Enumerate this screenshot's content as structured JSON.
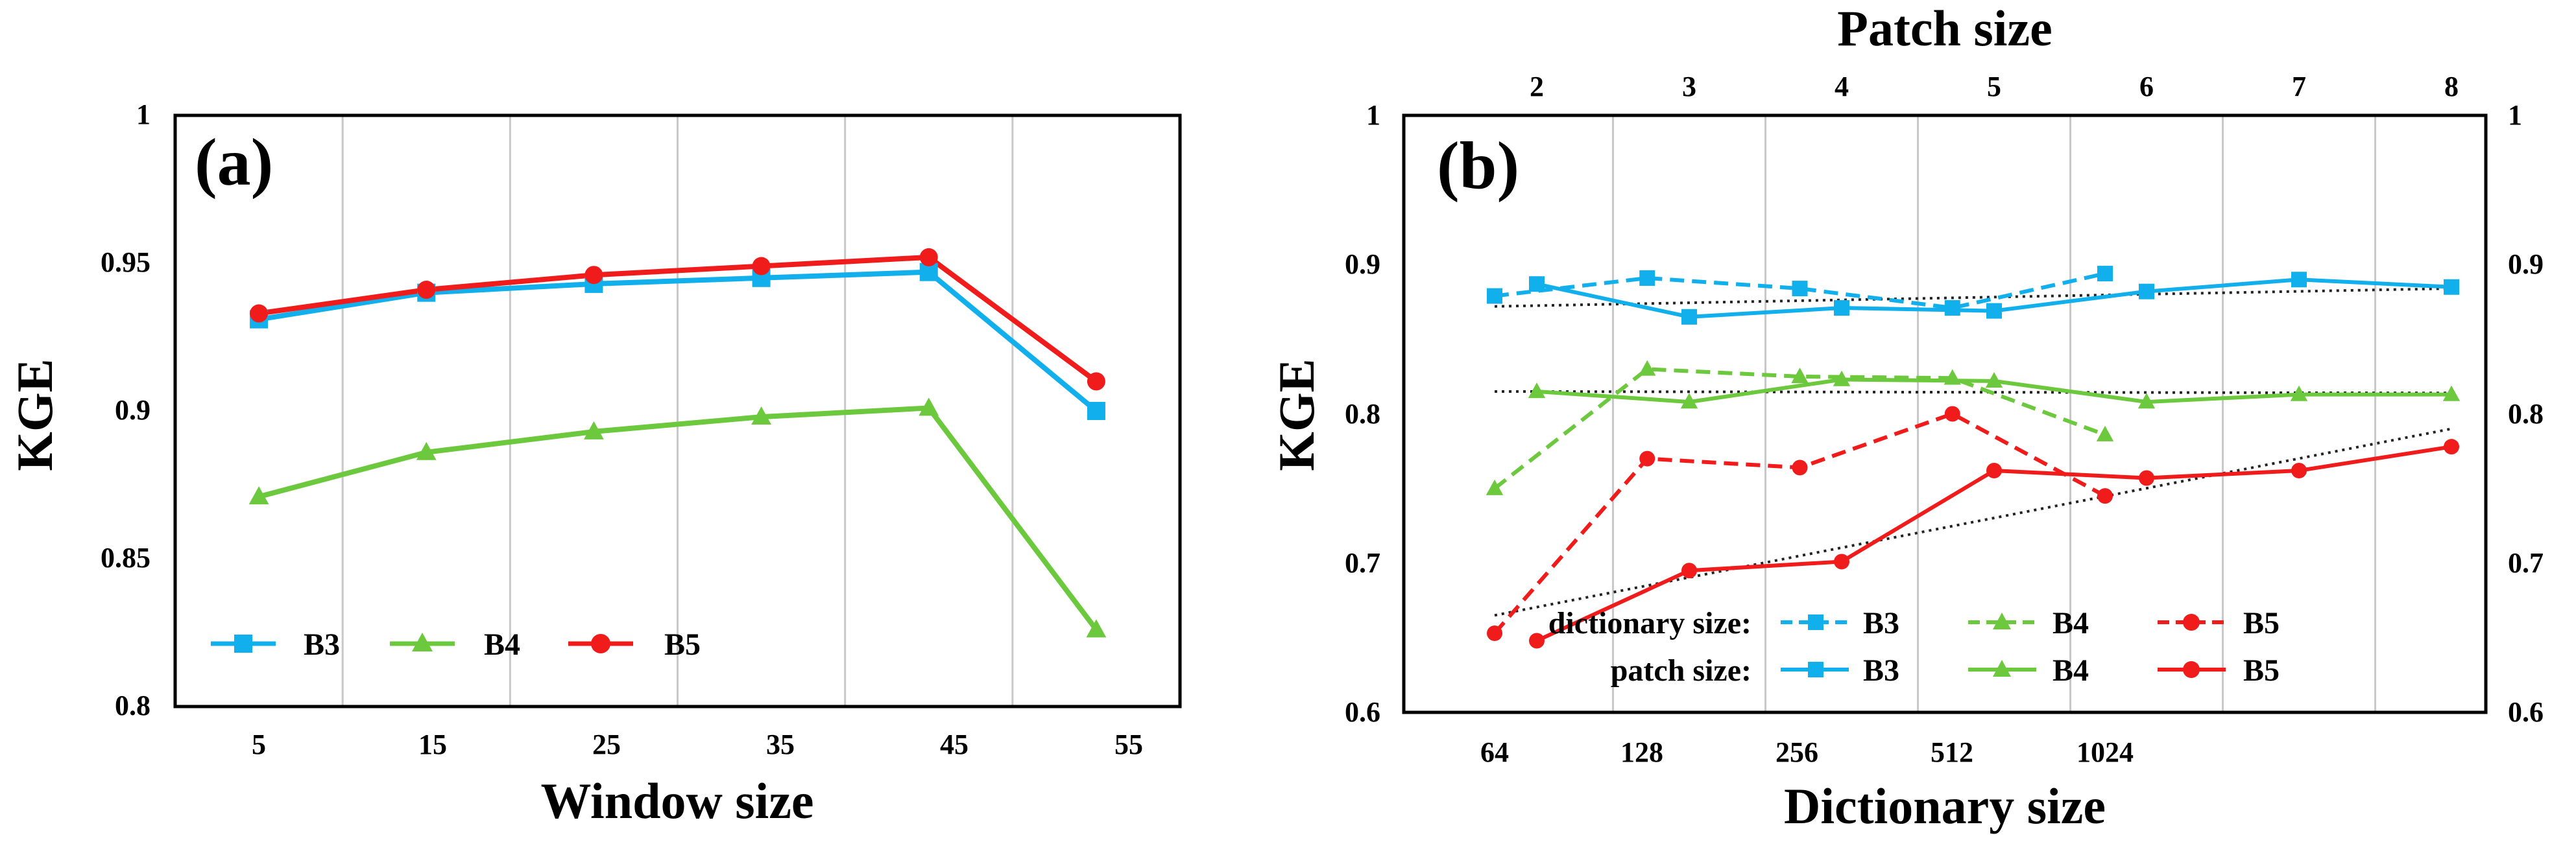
{
  "chart_data": [
    {
      "panel_label": "(a)",
      "type": "line",
      "xlabel": "Window size",
      "ylabel": "KGE",
      "x": [
        5,
        15,
        25,
        35,
        45,
        55
      ],
      "xlim": [
        0,
        60
      ],
      "ylim": [
        0.8,
        1.0
      ],
      "yticks": [
        "0.8",
        "0.85",
        "0.9",
        "0.95",
        "1"
      ],
      "xticks": [
        "5",
        "15",
        "25",
        "35",
        "45",
        "55"
      ],
      "grid": "vertical",
      "series": [
        {
          "name": "B3",
          "color": "#11b0ec",
          "marker": "square",
          "values": [
            0.931,
            0.94,
            0.943,
            0.945,
            0.947,
            0.9
          ]
        },
        {
          "name": "B4",
          "color": "#6cc83c",
          "marker": "triangle",
          "values": [
            0.871,
            0.886,
            0.893,
            0.898,
            0.901,
            0.826
          ]
        },
        {
          "name": "B5",
          "color": "#f01b1b",
          "marker": "circle",
          "values": [
            0.933,
            0.941,
            0.946,
            0.949,
            0.952,
            0.91
          ]
        }
      ],
      "legend": {
        "position": "bottom-left",
        "labels": [
          "B3",
          "B4",
          "B5"
        ]
      }
    },
    {
      "panel_label": "(b)",
      "type": "line",
      "xlabel": "Dictionary size",
      "x2label": "Patch size",
      "ylabel": "KGE",
      "ylim": [
        0.6,
        1.0
      ],
      "yticks": [
        "0.6",
        "0.7",
        "0.8",
        "0.9",
        "1"
      ],
      "bottom_ticks": [
        "64",
        "128",
        "256",
        "512",
        "1024"
      ],
      "top_ticks": [
        "2",
        "3",
        "4",
        "5",
        "6",
        "7",
        "8"
      ],
      "grid": "vertical",
      "dictionary_size_series": [
        {
          "name": "B3",
          "color": "#11b0ec",
          "marker": "square",
          "style": "dashed",
          "x": [
            64,
            128,
            256,
            512,
            1024
          ],
          "values": [
            0.879,
            0.891,
            0.884,
            0.871,
            0.894
          ]
        },
        {
          "name": "B4",
          "color": "#6cc83c",
          "marker": "triangle",
          "style": "dashed",
          "x": [
            64,
            128,
            256,
            512,
            1024
          ],
          "values": [
            0.75,
            0.83,
            0.825,
            0.824,
            0.786
          ]
        },
        {
          "name": "B5",
          "color": "#f01b1b",
          "marker": "circle",
          "style": "dashed",
          "x": [
            64,
            128,
            256,
            512,
            1024
          ],
          "values": [
            0.653,
            0.77,
            0.764,
            0.8,
            0.745
          ]
        }
      ],
      "patch_size_series": [
        {
          "name": "B3",
          "color": "#11b0ec",
          "marker": "square",
          "style": "solid",
          "x": [
            2,
            3,
            4,
            5,
            6,
            7,
            8
          ],
          "values": [
            0.887,
            0.865,
            0.871,
            0.869,
            0.882,
            0.89,
            0.885
          ]
        },
        {
          "name": "B4",
          "color": "#6cc83c",
          "marker": "triangle",
          "style": "solid",
          "x": [
            2,
            3,
            4,
            5,
            6,
            7,
            8
          ],
          "values": [
            0.815,
            0.808,
            0.823,
            0.822,
            0.808,
            0.813,
            0.813
          ]
        },
        {
          "name": "B5",
          "color": "#f01b1b",
          "marker": "circle",
          "style": "solid",
          "x": [
            2,
            3,
            4,
            5,
            6,
            7,
            8
          ],
          "values": [
            0.648,
            0.695,
            0.701,
            0.762,
            0.757,
            0.762,
            0.778
          ]
        }
      ],
      "trendlines": [
        {
          "series": "B3",
          "from": 0.872,
          "to": 0.884
        },
        {
          "series": "B4",
          "from": 0.815,
          "to": 0.814
        },
        {
          "series": "B5",
          "from": 0.665,
          "to": 0.79
        }
      ],
      "legend": {
        "position": "bottom-right",
        "row_labels": [
          "dictionary size:",
          "patch size:"
        ],
        "series_labels": [
          "B3",
          "B4",
          "B5"
        ]
      }
    }
  ]
}
